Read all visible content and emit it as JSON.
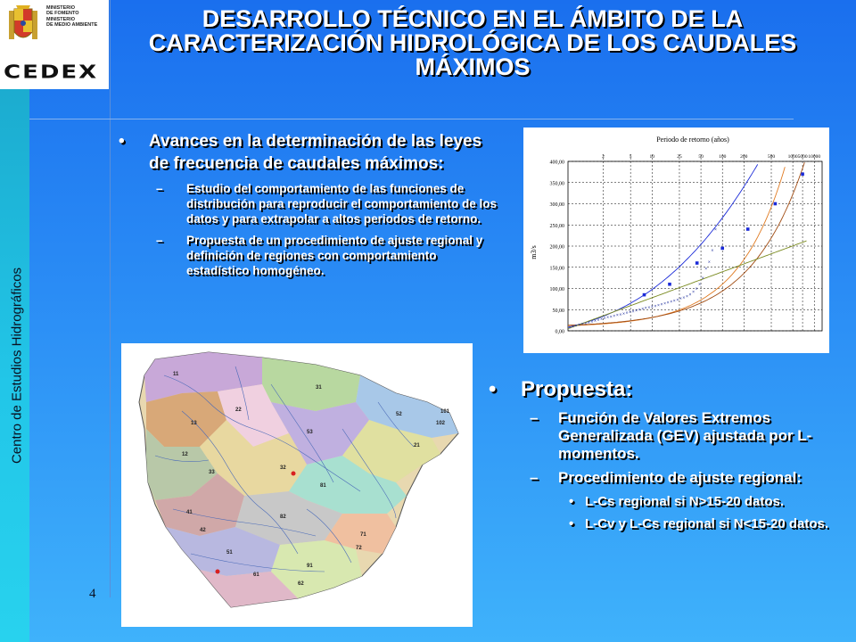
{
  "sidebar": {
    "label": "Centro de Estudios Hidrográficos"
  },
  "logo": {
    "ministry_lines": [
      "MINISTERIO",
      "DE FOMENTO",
      "MINISTERIO",
      "DE MEDIO AMBIENTE"
    ],
    "org": "CEDEX"
  },
  "title": "DESARROLLO TÉCNICO EN EL ÁMBITO DE LA CARACTERIZACIÓN HIDROLÓGICA DE LOS CAUDALES MÁXIMOS",
  "left": {
    "bullet": "Avances en la determinación de las leyes de frecuencia de caudales máximos:",
    "subitems": [
      "Estudio del comportamiento de las funciones de distribución para reproducir el comportamiento de los datos y para extrapolar a altos periodos de retorno.",
      "Propuesta de un procedimiento de ajuste regional y definición de regiones con comportamiento estadístico homogéneo."
    ]
  },
  "right": {
    "bullet": "Propuesta:",
    "subitems": [
      "Función de Valores Extremos Generalizada (GEV) ajustada por L-momentos.",
      "Procedimiento de ajuste regional:"
    ],
    "subsub": [
      "L-Cs regional si N>15-20 datos.",
      "L-Cv y L-Cs regional si N<15-20 datos."
    ]
  },
  "page_number": "4",
  "map": {
    "region_labels": [
      "11",
      "31",
      "52",
      "101",
      "13",
      "53",
      "21",
      "33",
      "32",
      "81",
      "82",
      "41",
      "71",
      "72",
      "51",
      "91",
      "102",
      "22",
      "42",
      "61",
      "62",
      "12"
    ]
  },
  "chart_data": {
    "type": "scatter",
    "title": "Periodo de retorno (años)",
    "ylabel": "m3/s",
    "ylim": [
      0,
      400
    ],
    "yticks": [
      "0,00",
      "50,00",
      "100,00",
      "150,00",
      "200,00",
      "250,00",
      "300,00",
      "350,00",
      "400,00"
    ],
    "return_periods": [
      "2",
      "5",
      "10",
      "25",
      "50",
      "100",
      "200",
      "500",
      "1000",
      "5000",
      "10000"
    ],
    "series": [
      {
        "points_x": [
          0.02,
          0.05,
          0.08,
          0.11,
          0.14,
          0.17,
          0.2,
          0.23,
          0.26,
          0.29,
          0.32,
          0.35,
          0.38,
          0.41,
          0.44,
          0.47,
          0.5,
          0.53,
          0.56,
          0.59,
          0.62,
          0.65,
          0.68,
          0.71,
          0.74,
          0.77,
          0.8,
          0.83,
          0.86,
          0.89,
          0.92,
          0.95,
          0.98,
          1.01,
          1.04,
          1.07,
          1.1,
          1.13,
          1.16,
          1.19,
          1.22,
          1.25,
          1.28,
          1.31,
          1.34,
          1.37,
          1.4
        ],
        "values": [
          8,
          10,
          12,
          14,
          16,
          18,
          20,
          22,
          24,
          26,
          28,
          30,
          32,
          33,
          35,
          37,
          39,
          41,
          43,
          45,
          46,
          48,
          50,
          52,
          54,
          55,
          57,
          59,
          61,
          63,
          65,
          67,
          69,
          71,
          73,
          76,
          79,
          82,
          86,
          92,
          100,
          110,
          125,
          147,
          163,
          190,
          240
        ]
      },
      {
        "points_x": [
          3.9,
          5.2,
          6.6,
          7.9,
          9.2,
          10.6,
          12.0
        ],
        "values": [
          85,
          110,
          160,
          195,
          240,
          300,
          370
        ]
      }
    ],
    "fit_curves": [
      {
        "color": "#e07a20"
      },
      {
        "color": "#a04a10"
      },
      {
        "color": "#1a2ad8"
      },
      {
        "color": "#7a8a20"
      }
    ]
  }
}
